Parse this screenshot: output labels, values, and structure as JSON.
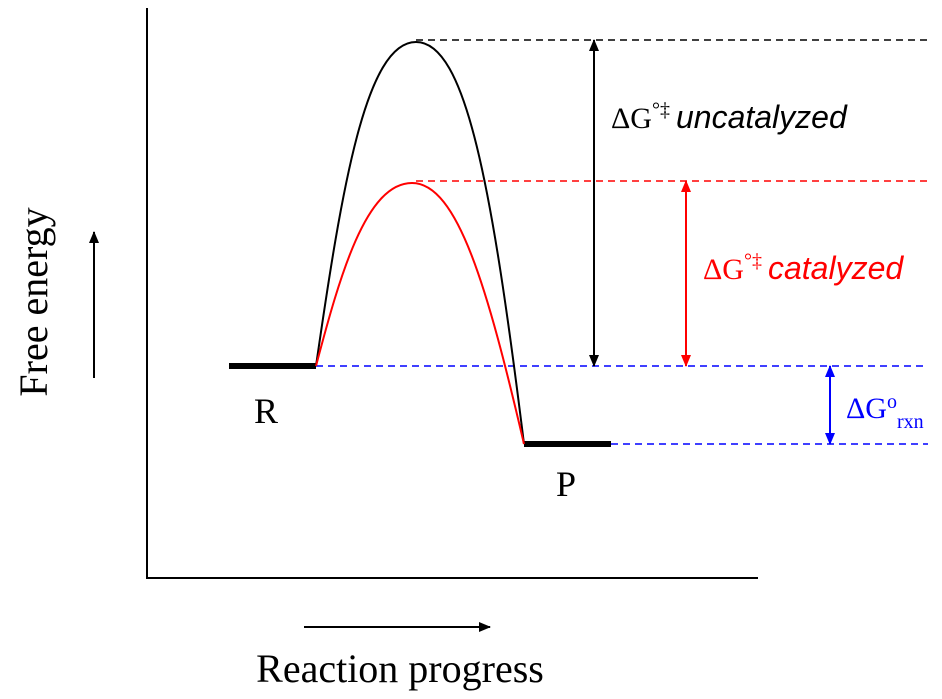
{
  "axes": {
    "y_label": "Free energy",
    "x_label": "Reaction progress"
  },
  "states": {
    "reactant_label": "R",
    "product_label": "P"
  },
  "uncatalyzed": {
    "delta": "Δ",
    "symbol": "G",
    "degree": "°",
    "ddagger": "‡",
    "qualifier": "uncatalyzed",
    "color": "#000000"
  },
  "catalyzed": {
    "delta": "Δ",
    "symbol": "G",
    "degree": "°",
    "ddagger": "‡",
    "qualifier": "catalyzed",
    "color": "#ff0000"
  },
  "reaction": {
    "delta": "Δ",
    "symbol": "G",
    "superscript": "o",
    "subscript": "rxn",
    "color": "#0000ff"
  }
}
